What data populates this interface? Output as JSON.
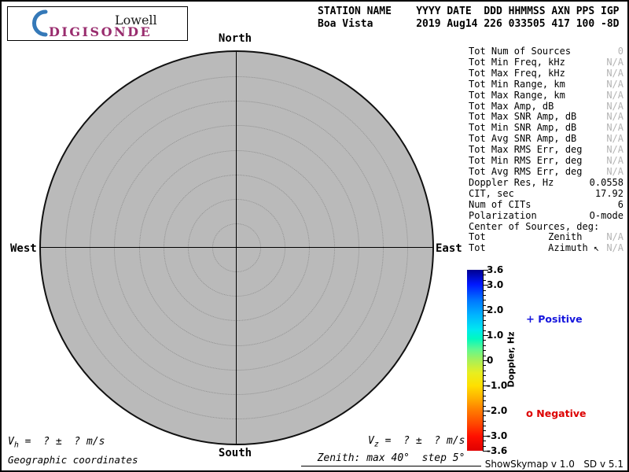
{
  "logo": {
    "top": "Lowell",
    "bottom": "DIGISONDE"
  },
  "header": {
    "line1": "STATION NAME    YYYY DATE  DDD HHMMSS AXN PPS IGP",
    "line2": "Boa Vista       2019 Aug14 226 033505 417 100 -8D"
  },
  "compass": {
    "north": "North",
    "south": "South",
    "east": "East",
    "west": "West"
  },
  "skymap": {
    "inner_rings": 7,
    "zenith_max_deg": 40,
    "zenith_step_deg": 5
  },
  "stats": {
    "rows": [
      {
        "label": "Tot Num of Sources",
        "value": "0",
        "dim": true
      },
      {
        "label": "Tot Min Freq, kHz",
        "value": "N/A",
        "dim": true
      },
      {
        "label": "Tot Max Freq, kHz",
        "value": "N/A",
        "dim": true
      },
      {
        "label": "Tot Min Range, km",
        "value": "N/A",
        "dim": true
      },
      {
        "label": "Tot Max Range, km",
        "value": "N/A",
        "dim": true
      },
      {
        "label": "Tot Max Amp, dB",
        "value": "N/A",
        "dim": true
      },
      {
        "label": "Tot Max SNR Amp, dB",
        "value": "N/A",
        "dim": true
      },
      {
        "label": "Tot Min SNR Amp, dB",
        "value": "N/A",
        "dim": true
      },
      {
        "label": "Tot Avg SNR Amp, dB",
        "value": "N/A",
        "dim": true
      },
      {
        "label": "Tot Max RMS Err, deg",
        "value": "N/A",
        "dim": true
      },
      {
        "label": "Tot Min RMS Err, deg",
        "value": "N/A",
        "dim": true
      },
      {
        "label": "Tot Avg RMS Err, deg",
        "value": "N/A",
        "dim": true
      },
      {
        "label": "Doppler Res, Hz",
        "value": "0.0558",
        "dim": false
      },
      {
        "label": "CIT, sec",
        "value": "17.92",
        "dim": false
      },
      {
        "label": "Num of CITs",
        "value": "6",
        "dim": false
      },
      {
        "label": "Polarization",
        "value": "O-mode",
        "dim": false
      },
      {
        "label": "Center of Sources, deg:",
        "value": "",
        "dim": false
      },
      {
        "label": "Tot           Zenith",
        "value": "N/A",
        "dim": true
      },
      {
        "label": "Tot           Azimuth ↖",
        "value": "N/A",
        "dim": true
      }
    ]
  },
  "colorbar": {
    "title": "Doppler, Hz",
    "max": 3.6,
    "min": -3.6,
    "minor_step": 0.2,
    "ticks": [
      {
        "v": 3.6,
        "label": "3.6"
      },
      {
        "v": 3.0,
        "label": "3.0"
      },
      {
        "v": 2.0,
        "label": "2.0"
      },
      {
        "v": 1.0,
        "label": "1.0"
      },
      {
        "v": 0.0,
        "label": "0"
      },
      {
        "v": -1.0,
        "label": "-1.0"
      },
      {
        "v": -2.0,
        "label": "-2.0"
      },
      {
        "v": -3.0,
        "label": "-3.0"
      },
      {
        "v": -3.6,
        "label": "-3.6"
      }
    ],
    "gradient": [
      "#000090 0%",
      "#0018ff 8%",
      "#0078ff 17%",
      "#00b4ff 25%",
      "#00e8f0 33%",
      "#00f8c0 38%",
      "#60f890 44%",
      "#a8f058 50%",
      "#e8ee20 57%",
      "#ffe000 64%",
      "#ffb000 71%",
      "#ff8000 77%",
      "#ff4800 85%",
      "#ff1000 92%",
      "#e00000 100%"
    ]
  },
  "legend": {
    "positive": {
      "marker": "+",
      "label": "Positive",
      "color": "#1515dd"
    },
    "negative": {
      "marker": "o",
      "label": "Negative",
      "color": "#dd0000"
    }
  },
  "footer": {
    "vh": {
      "symbol": "V",
      "sub": "h",
      "rest": " =  ? ±  ? m/s"
    },
    "vz": {
      "symbol": "V",
      "sub": "z",
      "rest": " =  ? ±  ? m/s"
    },
    "coords_label": "Geographic coordinates",
    "zenith_note": "Zenith: max 40°  step 5°",
    "version": "ShowSkymap v 1.0   SD v 5.1"
  },
  "colors": {
    "disk_gray": "#bababa",
    "ring_dots": "#8f8f8f",
    "na_gray": "#b4b4b4",
    "logo_purple": "#992c6e",
    "logo_blue": "#3579b8"
  },
  "chart_data": {
    "type": "scatter",
    "title": "Digisonde skymap — Boa Vista, 2019 Aug14 (226) 03:35:05",
    "coordinate_system": "polar (geographic coordinates)",
    "points": [],
    "num_sources": 0,
    "zenith_rings_deg": [
      5,
      10,
      15,
      20,
      25,
      30,
      35,
      40
    ],
    "zenith_max_deg": 40,
    "zenith_step_deg": 5,
    "colorbar": {
      "label": "Doppler, Hz",
      "min": -3.6,
      "max": 3.6,
      "tick_labels": [
        "3.6",
        "3.0",
        "2.0",
        "1.0",
        "0",
        "-1.0",
        "-2.0",
        "-3.0",
        "-3.6"
      ]
    },
    "legend_position": "right"
  }
}
